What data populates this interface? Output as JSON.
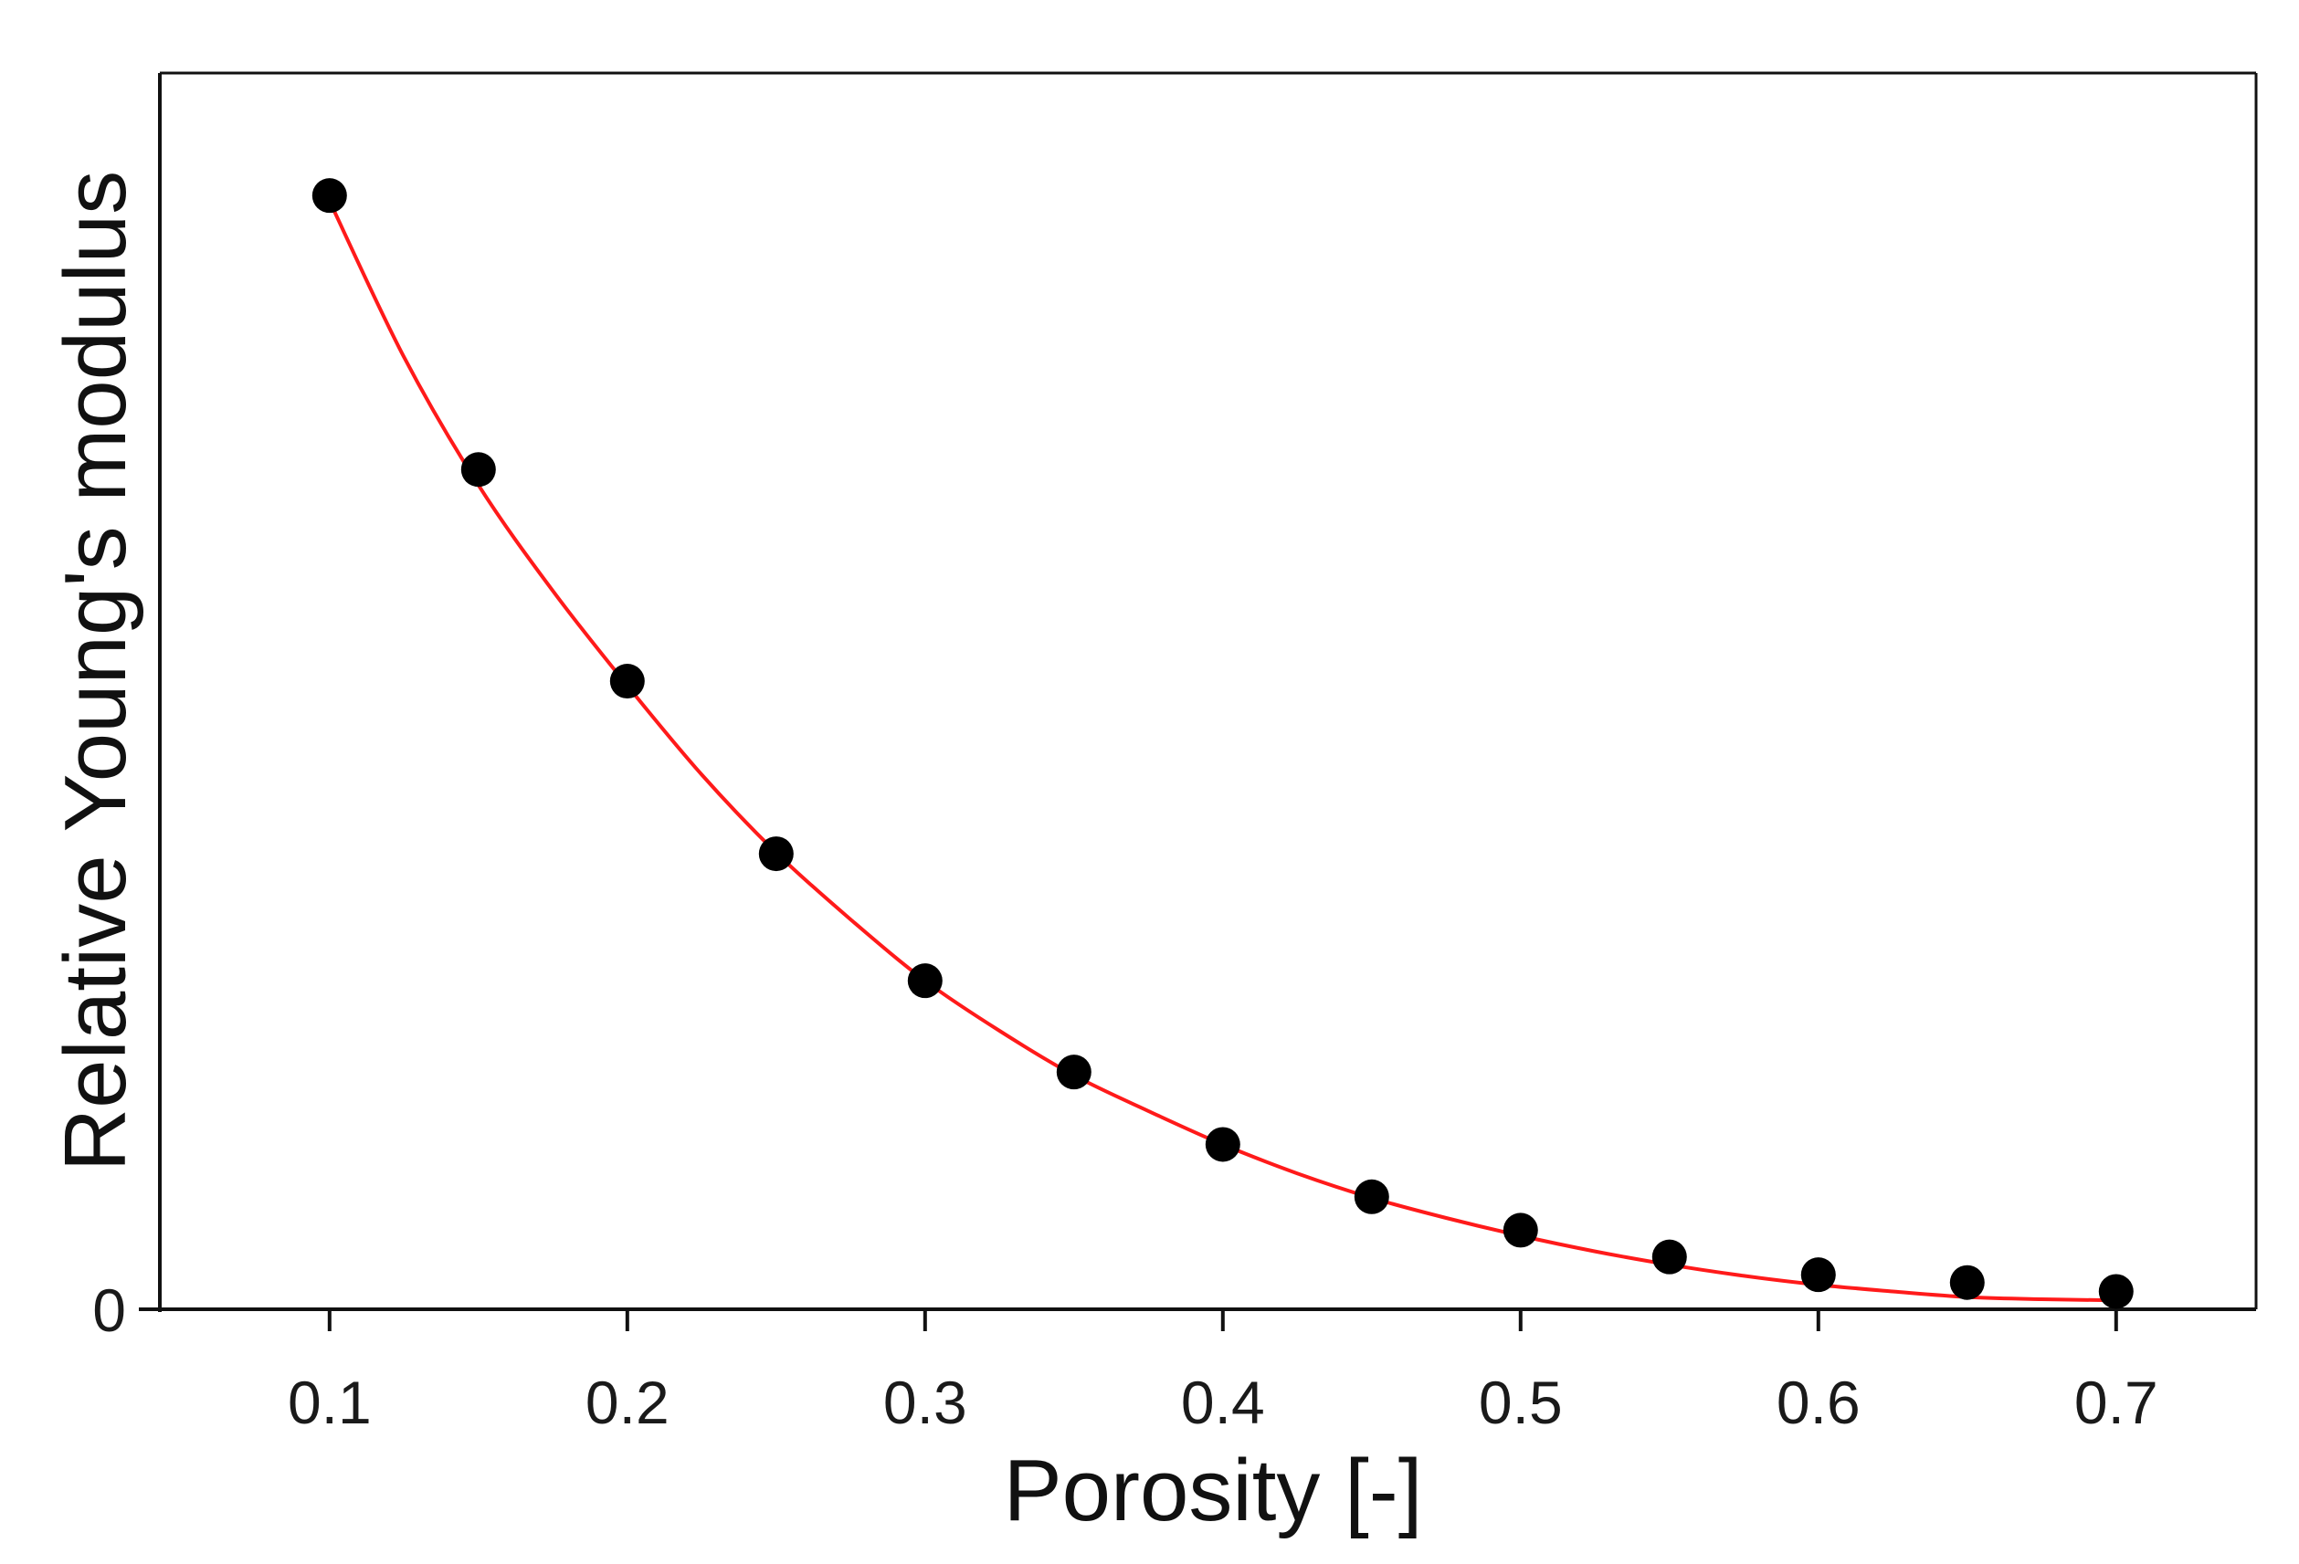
{
  "chart_data": {
    "type": "scatter",
    "title": "",
    "xlabel": "Porosity [-]",
    "ylabel": "Relative Young's modulus",
    "xlim": [
      0.043,
      0.747
    ],
    "ylim": [
      0,
      1.11
    ],
    "x_ticks": [
      "0.1",
      "0.2",
      "0.3",
      "0.4",
      "0.5",
      "0.6",
      "0.7"
    ],
    "x_tick_values": [
      0.1,
      0.2,
      0.3,
      0.4,
      0.5,
      0.6,
      0.7
    ],
    "y_ticks": [
      "0"
    ],
    "y_tick_values": [
      0
    ],
    "grid": false,
    "legend": "none",
    "colors": {
      "points": "#000000",
      "fit": "#ff1a1a",
      "axes": "#111111"
    },
    "series": [
      {
        "kind": "points",
        "x": [
          0.1,
          0.15,
          0.2,
          0.25,
          0.3,
          0.35,
          0.4,
          0.45,
          0.5,
          0.55,
          0.6,
          0.65,
          0.7
        ],
        "y": [
          1.0,
          0.754,
          0.564,
          0.409,
          0.295,
          0.213,
          0.148,
          0.101,
          0.071,
          0.047,
          0.031,
          0.024,
          0.016
        ]
      },
      {
        "kind": "fit",
        "x": [
          0.1,
          0.125,
          0.15,
          0.175,
          0.2,
          0.225,
          0.25,
          0.275,
          0.3,
          0.325,
          0.35,
          0.375,
          0.4,
          0.425,
          0.45,
          0.475,
          0.5,
          0.525,
          0.55,
          0.575,
          0.6,
          0.625,
          0.65,
          0.675,
          0.7
        ],
        "y": [
          0.995,
          0.855,
          0.74,
          0.645,
          0.56,
          0.48,
          0.41,
          0.35,
          0.295,
          0.25,
          0.21,
          0.178,
          0.148,
          0.122,
          0.1,
          0.082,
          0.066,
          0.052,
          0.04,
          0.03,
          0.022,
          0.016,
          0.011,
          0.009,
          0.008
        ]
      }
    ]
  }
}
